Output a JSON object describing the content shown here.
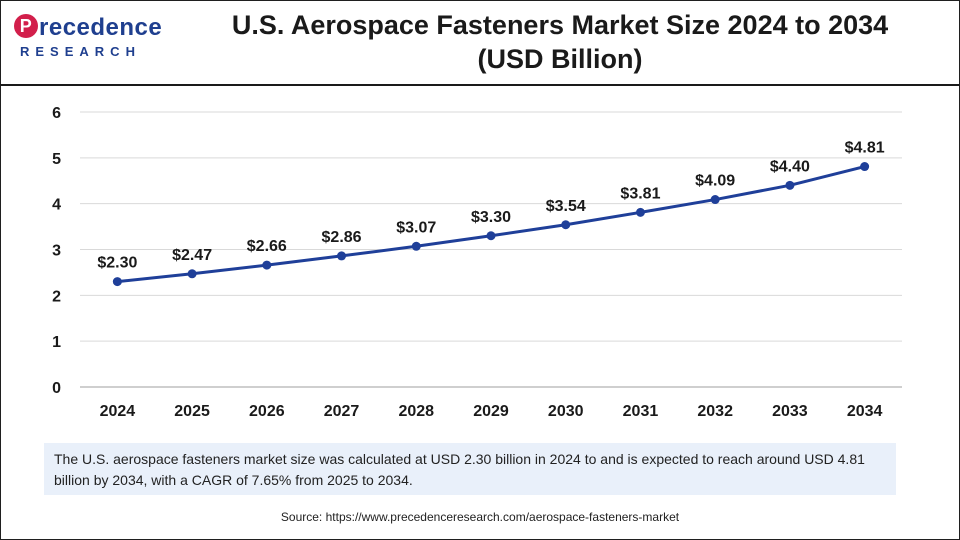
{
  "logo": {
    "line1": "recedence",
    "mark": "P",
    "line2": "RESEARCH"
  },
  "header": {
    "title_line1": "U.S. Aerospace Fasteners Market Size 2024 to 2034",
    "title_line2": "(USD Billion)"
  },
  "colors": {
    "line": "#1f3f99",
    "grid": "#d9d9d9",
    "axis": "#bfbfbf",
    "note_bg": "#e9f0fa"
  },
  "chart_data": {
    "type": "line",
    "title": "U.S. Aerospace Fasteners Market Size 2024 to 2034 (USD Billion)",
    "categories": [
      "2024",
      "2025",
      "2026",
      "2027",
      "2028",
      "2029",
      "2030",
      "2031",
      "2032",
      "2033",
      "2034"
    ],
    "series": [
      {
        "name": "Market Size (USD Billion)",
        "values": [
          2.3,
          2.47,
          2.66,
          2.86,
          3.07,
          3.3,
          3.54,
          3.81,
          4.09,
          4.4,
          4.81
        ],
        "labels": [
          "$2.30",
          "$2.47",
          "$2.66",
          "$2.86",
          "$3.07",
          "$3.30",
          "$3.54",
          "$3.81",
          "$4.09",
          "$4.40",
          "$4.81"
        ]
      }
    ],
    "yticks": [
      "0",
      "1",
      "2",
      "3",
      "4",
      "5",
      "6"
    ],
    "ylim": [
      0,
      6
    ],
    "grid": true,
    "xlabel": "",
    "ylabel": ""
  },
  "note": "The U.S. aerospace fasteners market size was calculated at USD 2.30 billion in 2024 to and is expected to reach around USD 4.81 billion by 2034, with a CAGR of 7.65% from 2025 to 2034.",
  "source": "Source: https://www.precedenceresearch.com/aerospace-fasteners-market"
}
